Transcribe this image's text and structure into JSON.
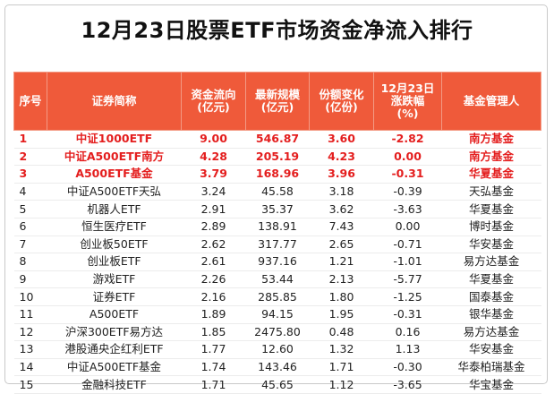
{
  "title": "12月23日股票ETF市场资金净流入排行",
  "headers": [
    [
      "序号"
    ],
    [
      "证券简称"
    ],
    [
      "资金流向",
      "(亿元)"
    ],
    [
      "最新规模",
      "(亿元)"
    ],
    [
      "份额变化",
      "(亿份)"
    ],
    [
      "12月23日",
      "涨跌幅",
      "(%)"
    ],
    [
      "基金管理人"
    ]
  ],
  "rows": [
    [
      "1",
      "中证1000ETF",
      "9.00",
      "546.87",
      "3.60",
      "-2.82",
      "南方基金"
    ],
    [
      "2",
      "中证A500ETF南方",
      "4.28",
      "205.19",
      "4.23",
      "0.00",
      "南方基金"
    ],
    [
      "3",
      "A500ETF基金",
      "3.79",
      "168.96",
      "3.96",
      "-0.31",
      "华夏基金"
    ],
    [
      "4",
      "中证A500ETF天弘",
      "3.24",
      "45.58",
      "3.18",
      "-0.39",
      "天弘基金"
    ],
    [
      "5",
      "机器人ETF",
      "2.91",
      "35.37",
      "3.62",
      "-3.63",
      "华夏基金"
    ],
    [
      "6",
      "恒生医疗ETF",
      "2.89",
      "138.91",
      "7.43",
      "0.00",
      "博时基金"
    ],
    [
      "7",
      "创业板50ETF",
      "2.62",
      "317.77",
      "2.65",
      "-0.71",
      "华安基金"
    ],
    [
      "8",
      "创业板ETF",
      "2.61",
      "937.16",
      "1.21",
      "-1.01",
      "易方达基金"
    ],
    [
      "9",
      "游戏ETF",
      "2.26",
      "53.44",
      "2.13",
      "-5.77",
      "华夏基金"
    ],
    [
      "10",
      "证券ETF",
      "2.16",
      "285.85",
      "1.80",
      "-1.25",
      "国泰基金"
    ],
    [
      "11",
      "A500ETF",
      "1.89",
      "94.15",
      "1.95",
      "-0.31",
      "银华基金"
    ],
    [
      "12",
      "沪深300ETF易方达",
      "1.85",
      "2475.80",
      "0.48",
      "0.16",
      "易方达基金"
    ],
    [
      "13",
      "港股通央企红利ETF",
      "1.77",
      "12.60",
      "1.32",
      "1.13",
      "华安基金"
    ],
    [
      "14",
      "中证A500ETF基金",
      "1.74",
      "143.46",
      "1.71",
      "-0.30",
      "华泰柏瑞基金"
    ],
    [
      "15",
      "金融科技ETF",
      "1.71",
      "45.65",
      "1.12",
      "-3.65",
      "华宝基金"
    ]
  ],
  "highlight_rows": [
    1,
    2,
    3
  ],
  "colors": {
    "header_bg": "#ef5a3a",
    "header_text": "#ffffff",
    "highlight_text": "#e41e1e",
    "body_text": "#222222"
  }
}
